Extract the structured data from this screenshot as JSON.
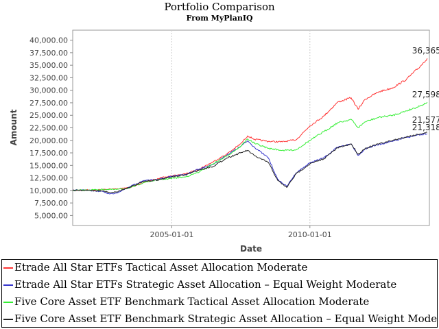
{
  "chart_data": {
    "type": "line",
    "title": "Portfolio Comparison",
    "subtitle": "From MyPlanIQ",
    "xlabel": "Date",
    "ylabel": "Amount",
    "ylim": [
      3000,
      42000
    ],
    "xlim": [
      "2001-06-01",
      "2014-04-30"
    ],
    "yticks": [
      "5,000.00",
      "7,500.00",
      "10,000.00",
      "12,500.00",
      "15,000.00",
      "17,500.00",
      "20,000.00",
      "22,500.00",
      "25,000.00",
      "27,500.00",
      "30,000.00",
      "32,500.00",
      "35,000.00",
      "37,500.00",
      "40,000.00"
    ],
    "ytick_values": [
      5000,
      7500,
      10000,
      12500,
      15000,
      17500,
      20000,
      22500,
      25000,
      27500,
      30000,
      32500,
      35000,
      37500,
      40000
    ],
    "xticks": [
      "2005-01-01",
      "2010-01-01"
    ],
    "xtick_values": [
      "2005-01-01",
      "2010-01-01"
    ],
    "grid": true,
    "legend_position": "bottom",
    "series": [
      {
        "name": "Etrade All Star ETFs Tactical Asset Allocation Moderate",
        "color": "#ff3333",
        "end_label": "36,365",
        "x": [
          "2001-06-01",
          "2002-01-01",
          "2002-07-01",
          "2003-01-01",
          "2003-07-01",
          "2004-01-01",
          "2004-07-01",
          "2005-01-01",
          "2005-07-01",
          "2006-01-01",
          "2006-07-01",
          "2007-01-01",
          "2007-07-01",
          "2007-10-01",
          "2008-01-01",
          "2008-07-01",
          "2009-01-01",
          "2009-07-01",
          "2010-01-01",
          "2010-07-01",
          "2011-01-01",
          "2011-07-01",
          "2011-10-01",
          "2012-01-01",
          "2012-07-01",
          "2013-01-01",
          "2013-07-01",
          "2014-01-01",
          "2014-04-01"
        ],
        "values": [
          10000,
          10100,
          10200,
          10300,
          10600,
          11600,
          12400,
          12900,
          13300,
          14300,
          15700,
          17300,
          19300,
          20900,
          20200,
          19800,
          19700,
          20100,
          22900,
          24800,
          27600,
          28500,
          26200,
          28200,
          29700,
          30500,
          32200,
          34800,
          36365
        ]
      },
      {
        "name": "Etrade All Star ETFs Strategic Asset Allocation – Equal Weight Moderate",
        "color": "#3333cc",
        "end_label": "21,318",
        "x": [
          "2001-06-01",
          "2002-01-01",
          "2002-07-01",
          "2002-10-01",
          "2003-01-01",
          "2003-07-01",
          "2004-01-01",
          "2004-07-01",
          "2005-01-01",
          "2005-07-01",
          "2006-01-01",
          "2006-07-01",
          "2007-01-01",
          "2007-07-01",
          "2007-10-01",
          "2008-01-01",
          "2008-07-01",
          "2008-11-01",
          "2009-03-01",
          "2009-07-01",
          "2010-01-01",
          "2010-07-01",
          "2011-01-01",
          "2011-07-01",
          "2011-10-01",
          "2012-01-01",
          "2012-07-01",
          "2013-01-01",
          "2013-07-01",
          "2014-01-01",
          "2014-04-01"
        ],
        "values": [
          10100,
          10000,
          9800,
          9300,
          9500,
          10800,
          12000,
          12200,
          12800,
          13200,
          14300,
          15200,
          17100,
          18800,
          19900,
          18600,
          16500,
          12200,
          10800,
          13500,
          15500,
          16500,
          18600,
          19300,
          17000,
          18300,
          19200,
          19800,
          20600,
          21100,
          21318
        ]
      },
      {
        "name": "Five Core Asset ETF Benchmark Tactical Asset Allocation Moderate",
        "color": "#33ee33",
        "end_label": "27,598",
        "x": [
          "2001-06-01",
          "2002-01-01",
          "2002-07-01",
          "2003-01-01",
          "2003-07-01",
          "2004-01-01",
          "2004-07-01",
          "2005-01-01",
          "2005-07-01",
          "2006-01-01",
          "2006-07-01",
          "2007-01-01",
          "2007-07-01",
          "2007-10-01",
          "2008-01-01",
          "2008-07-01",
          "2009-01-01",
          "2009-07-01",
          "2010-01-01",
          "2010-07-01",
          "2011-01-01",
          "2011-07-01",
          "2011-10-01",
          "2012-01-01",
          "2012-07-01",
          "2013-01-01",
          "2013-07-01",
          "2014-01-01",
          "2014-04-01"
        ],
        "values": [
          10000,
          10100,
          10200,
          10200,
          10500,
          11600,
          12100,
          12400,
          12700,
          13700,
          15300,
          16900,
          18800,
          20300,
          19400,
          18400,
          18000,
          18100,
          20000,
          21700,
          23500,
          24200,
          22500,
          23700,
          24600,
          25000,
          25900,
          26900,
          27598
        ]
      },
      {
        "name": "Five Core Asset ETF Benchmark Strategic Asset Allocation – Equal Weight Moderate",
        "color": "#222222",
        "end_label": "21,577",
        "x": [
          "2001-06-01",
          "2002-01-01",
          "2002-07-01",
          "2002-10-01",
          "2003-01-01",
          "2003-07-01",
          "2004-01-01",
          "2004-07-01",
          "2005-01-01",
          "2005-07-01",
          "2006-01-01",
          "2006-07-01",
          "2007-01-01",
          "2007-07-01",
          "2007-10-01",
          "2008-01-01",
          "2008-07-01",
          "2008-11-01",
          "2009-03-01",
          "2009-07-01",
          "2010-01-01",
          "2010-07-01",
          "2011-01-01",
          "2011-07-01",
          "2011-10-01",
          "2012-01-01",
          "2012-07-01",
          "2013-01-01",
          "2013-07-01",
          "2014-01-01",
          "2014-04-01"
        ],
        "values": [
          10000,
          10000,
          9900,
          9600,
          9700,
          10700,
          11800,
          12100,
          12700,
          13100,
          14100,
          14800,
          16500,
          17500,
          18000,
          16900,
          15600,
          12000,
          10600,
          13300,
          15300,
          16300,
          18500,
          19300,
          17200,
          18400,
          19300,
          20000,
          20700,
          21300,
          21577
        ]
      }
    ]
  }
}
